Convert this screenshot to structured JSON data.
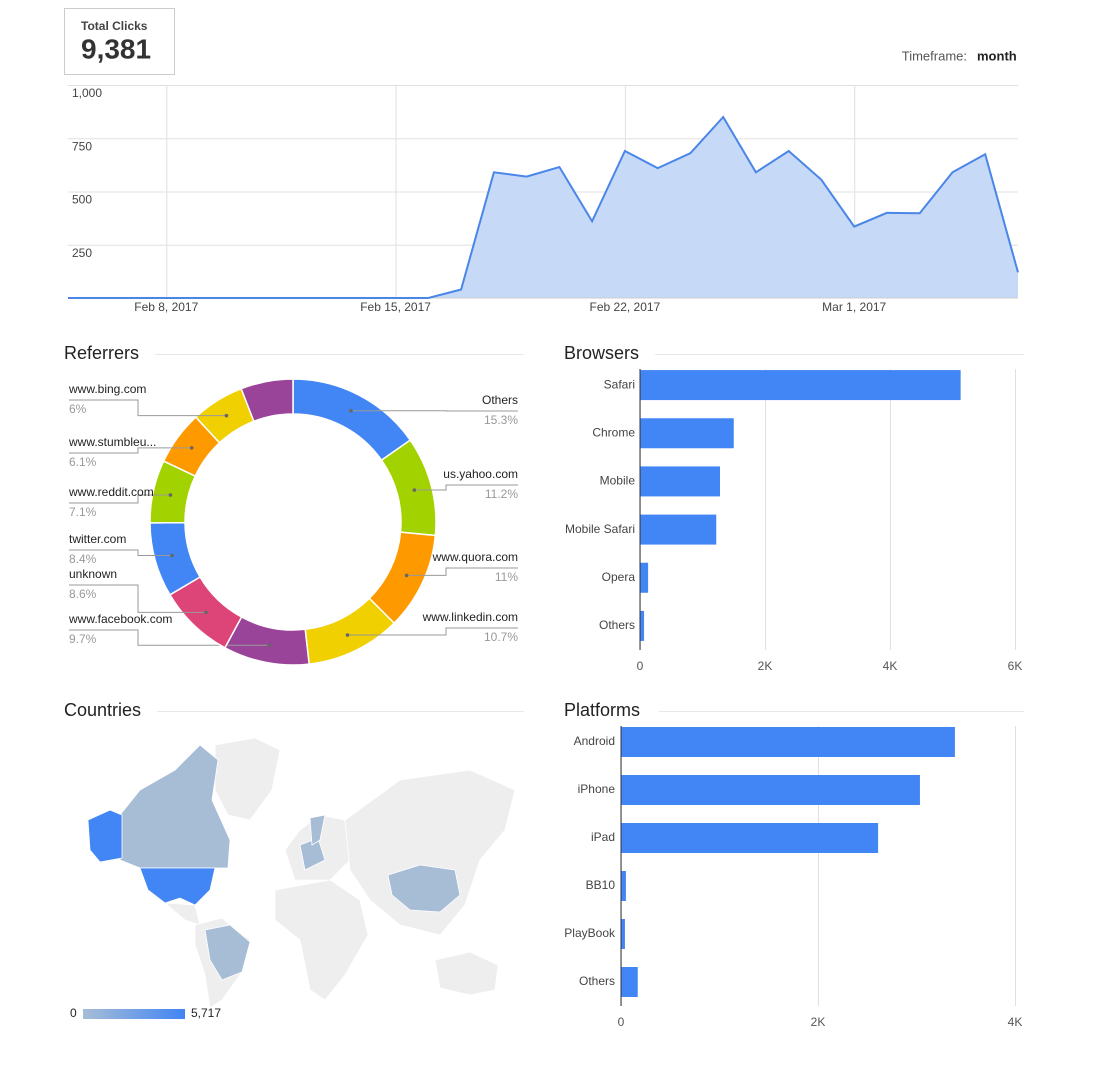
{
  "total_clicks": {
    "title": "Total Clicks",
    "value": "9,381"
  },
  "timeframe": {
    "label": "Timeframe:",
    "value": "month"
  },
  "chart_data": [
    {
      "type": "line",
      "x": [
        "2017-02-05",
        "2017-02-06",
        "2017-02-07",
        "2017-02-08",
        "2017-02-09",
        "2017-02-10",
        "2017-02-11",
        "2017-02-12",
        "2017-02-13",
        "2017-02-14",
        "2017-02-15",
        "2017-02-16",
        "2017-02-17",
        "2017-02-18",
        "2017-02-19",
        "2017-02-20",
        "2017-02-21",
        "2017-02-22",
        "2017-02-23",
        "2017-02-24",
        "2017-02-25",
        "2017-02-26",
        "2017-02-27",
        "2017-02-28",
        "2017-03-01",
        "2017-03-02",
        "2017-03-03",
        "2017-03-04",
        "2017-03-05",
        "2017-03-06"
      ],
      "values": [
        0,
        0,
        0,
        0,
        0,
        0,
        0,
        0,
        0,
        0,
        0,
        0,
        40,
        590,
        570,
        615,
        360,
        690,
        610,
        680,
        850,
        590,
        690,
        555,
        335,
        400,
        398,
        590,
        675,
        120
      ],
      "color": "#4a86e8",
      "fill": "#c6d9f7",
      "xlim": [
        "2017-02-05",
        "2017-03-06"
      ],
      "xticks": [
        {
          "value": "2017-02-08",
          "label": "Feb 8, 2017"
        },
        {
          "value": "2017-02-15",
          "label": "Feb 15, 2017"
        },
        {
          "value": "2017-02-22",
          "label": "Feb 22, 2017"
        },
        {
          "value": "2017-03-01",
          "label": "Mar 1, 2017"
        }
      ],
      "ylim": [
        0,
        1000
      ],
      "yticks": [
        250,
        500,
        750,
        {
          "value": 1000,
          "label": "1,000"
        }
      ],
      "grid": true
    },
    {
      "type": "pie",
      "title": "Referrers",
      "categories": [
        "Others",
        "us.yahoo.com",
        "www.quora.com",
        "www.linkedin.com",
        "www.facebook.com",
        "unknown",
        "twitter.com",
        "www.reddit.com",
        "www.stumbleu...",
        "www.bing.com",
        null
      ],
      "values": [
        15.3,
        11.2,
        11,
        10.7,
        9.7,
        8.6,
        8.4,
        7.1,
        6.1,
        6,
        5.9
      ],
      "value_labels": [
        "15.3%",
        "11.2%",
        "11%",
        "10.7%",
        "9.7%",
        "8.6%",
        "8.4%",
        "7.1%",
        "6.1%",
        "6%",
        null
      ],
      "colors": [
        "#4285f4",
        "#a2d200",
        "#ff9900",
        "#f0d000",
        "#994499",
        "#dd4477",
        "#4285f4",
        "#a2d200",
        "#ff9900",
        "#f0d000",
        "#994499"
      ]
    },
    {
      "type": "bar",
      "title": "Browsers",
      "categories": [
        "Safari",
        "Chrome",
        "Mobile",
        "Mobile Safari",
        "Opera",
        "Others"
      ],
      "values": [
        5130,
        1500,
        1280,
        1220,
        130,
        65
      ],
      "color": "#4285f4",
      "xlim": [
        0,
        6000
      ],
      "xticks": [
        0,
        {
          "value": 2000,
          "label": "2K"
        },
        {
          "value": 4000,
          "label": "4K"
        },
        {
          "value": 6000,
          "label": "6K"
        }
      ],
      "grid": true
    },
    {
      "type": "map",
      "title": "Countries",
      "colorbar": {
        "min": 0,
        "max": {
          "value": 5717,
          "label": "5,717"
        },
        "colors": [
          "#a7bdd6",
          "#4285f4"
        ]
      }
    },
    {
      "type": "bar",
      "title": "Platforms",
      "categories": [
        "Android",
        "iPhone",
        "iPad",
        "BB10",
        "PlayBook",
        "Others"
      ],
      "values": [
        3390,
        3035,
        2610,
        50,
        40,
        170
      ],
      "color": "#4285f4",
      "xlim": [
        0,
        4000
      ],
      "xticks": [
        0,
        {
          "value": 2000,
          "label": "2K"
        },
        {
          "value": 4000,
          "label": "4K"
        }
      ],
      "grid": true
    }
  ]
}
